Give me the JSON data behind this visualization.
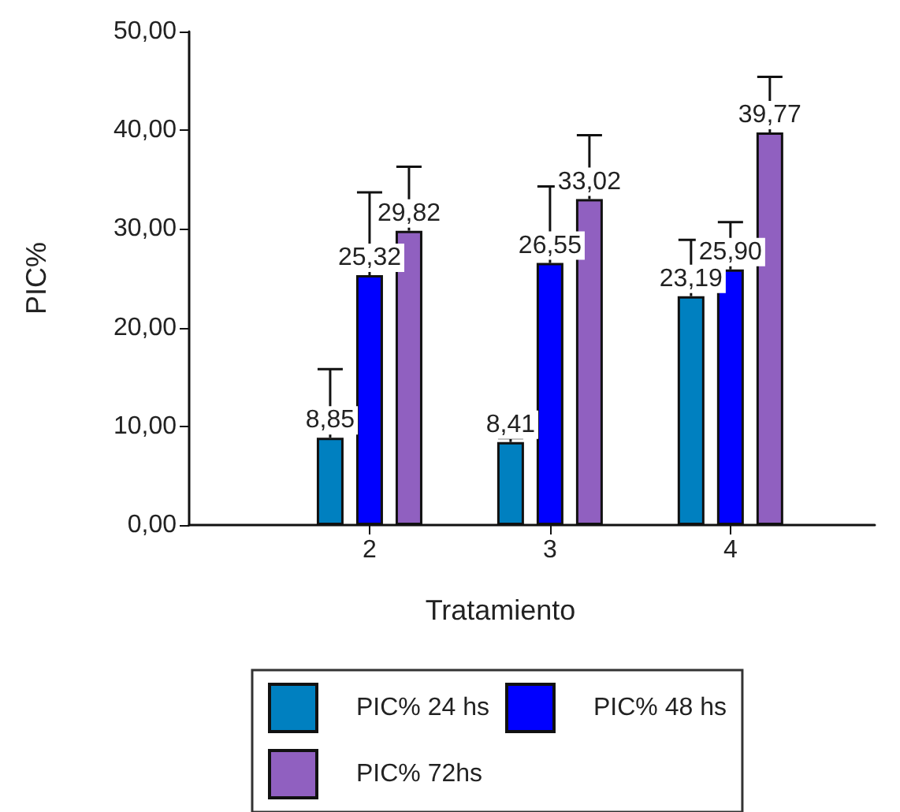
{
  "chart_data": {
    "type": "bar",
    "xlabel": "Tratamiento",
    "ylabel": "PIC%",
    "x": [
      2,
      3,
      4
    ],
    "xlim": [
      1,
      4.8
    ],
    "xticks": [
      2,
      3,
      4
    ],
    "ylim": [
      0,
      50
    ],
    "yticks": [
      {
        "value": 0,
        "label": "0,00"
      },
      {
        "value": 10,
        "label": "10,00"
      },
      {
        "value": 20,
        "label": "20,00"
      },
      {
        "value": 30,
        "label": "30,00"
      },
      {
        "value": 40,
        "label": "40,00"
      },
      {
        "value": 50,
        "label": "50,00"
      }
    ],
    "series": [
      {
        "name": "PIC% 24 hs",
        "color": "#0080c0",
        "values": [
          8.85,
          8.41,
          23.19
        ],
        "value_labels": [
          "8,85",
          "8,41",
          "23,19"
        ],
        "errors": [
          [
            8.85,
            15.8
          ],
          [
            8.41,
            8.8
          ],
          [
            23.19,
            28.9
          ]
        ]
      },
      {
        "name": "PIC% 48 hs",
        "color": "#0000ff",
        "values": [
          25.32,
          26.55,
          25.9
        ],
        "value_labels": [
          "25,32",
          "26,55",
          "25,90"
        ],
        "errors": [
          [
            25.32,
            33.7
          ],
          [
            26.55,
            34.3
          ],
          [
            25.9,
            30.7
          ]
        ]
      },
      {
        "name": "PIC% 72hs",
        "color": "#9060c0",
        "values": [
          29.82,
          33.02,
          39.77
        ],
        "value_labels": [
          "29,82",
          "33,02",
          "39,77"
        ],
        "errors": [
          [
            29.82,
            36.3
          ],
          [
            33.02,
            39.5
          ],
          [
            39.77,
            45.4
          ]
        ]
      }
    ],
    "grid": false,
    "legend": "bottom"
  }
}
